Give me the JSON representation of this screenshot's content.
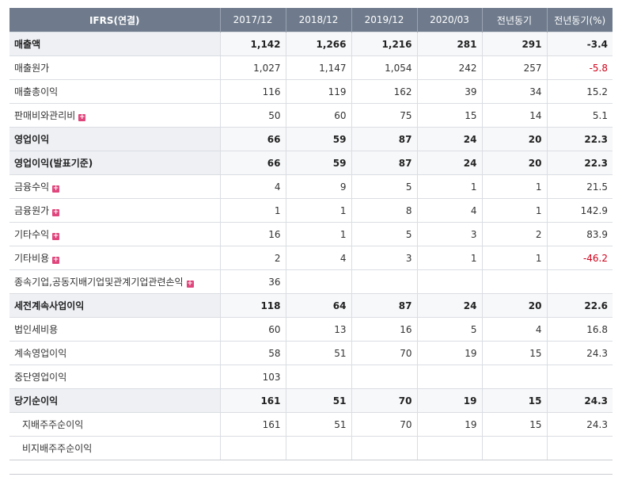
{
  "headers": [
    "IFRS(연결)",
    "2017/12",
    "2018/12",
    "2019/12",
    "2020/03",
    "전년동기",
    "전년동기(%)"
  ],
  "rows": [
    {
      "label": "매출액",
      "bold": true,
      "plus": false,
      "indent": false,
      "values": [
        "1,142",
        "1,266",
        "1,216",
        "281",
        "291",
        "-3.4"
      ],
      "neg": [
        false,
        false,
        false,
        false,
        false,
        true
      ]
    },
    {
      "label": "매출원가",
      "bold": false,
      "plus": false,
      "indent": false,
      "values": [
        "1,027",
        "1,147",
        "1,054",
        "242",
        "257",
        "-5.8"
      ],
      "neg": [
        false,
        false,
        false,
        false,
        false,
        true
      ]
    },
    {
      "label": "매출총이익",
      "bold": false,
      "plus": false,
      "indent": false,
      "values": [
        "116",
        "119",
        "162",
        "39",
        "34",
        "15.2"
      ],
      "neg": [
        false,
        false,
        false,
        false,
        false,
        false
      ]
    },
    {
      "label": "판매비와관리비",
      "bold": false,
      "plus": true,
      "indent": false,
      "values": [
        "50",
        "60",
        "75",
        "15",
        "14",
        "5.1"
      ],
      "neg": [
        false,
        false,
        false,
        false,
        false,
        false
      ]
    },
    {
      "label": "영업이익",
      "bold": true,
      "plus": false,
      "indent": false,
      "values": [
        "66",
        "59",
        "87",
        "24",
        "20",
        "22.3"
      ],
      "neg": [
        false,
        false,
        false,
        false,
        false,
        false
      ]
    },
    {
      "label": "영업이익(발표기준)",
      "bold": true,
      "plus": false,
      "indent": false,
      "values": [
        "66",
        "59",
        "87",
        "24",
        "20",
        "22.3"
      ],
      "neg": [
        false,
        false,
        false,
        false,
        false,
        false
      ]
    },
    {
      "label": "금융수익",
      "bold": false,
      "plus": true,
      "indent": false,
      "values": [
        "4",
        "9",
        "5",
        "1",
        "1",
        "21.5"
      ],
      "neg": [
        false,
        false,
        false,
        false,
        false,
        false
      ]
    },
    {
      "label": "금융원가",
      "bold": false,
      "plus": true,
      "indent": false,
      "values": [
        "1",
        "1",
        "8",
        "4",
        "1",
        "142.9"
      ],
      "neg": [
        false,
        false,
        false,
        false,
        false,
        false
      ]
    },
    {
      "label": "기타수익",
      "bold": false,
      "plus": true,
      "indent": false,
      "values": [
        "16",
        "1",
        "5",
        "3",
        "2",
        "83.9"
      ],
      "neg": [
        false,
        false,
        false,
        false,
        false,
        false
      ]
    },
    {
      "label": "기타비용",
      "bold": false,
      "plus": true,
      "indent": false,
      "values": [
        "2",
        "4",
        "3",
        "1",
        "1",
        "-46.2"
      ],
      "neg": [
        false,
        false,
        false,
        false,
        false,
        true
      ]
    },
    {
      "label": "종속기업,공동지배기업및관계기업관련손익",
      "bold": false,
      "plus": true,
      "indent": false,
      "values": [
        "36",
        "",
        "",
        "",
        "",
        ""
      ],
      "neg": [
        false,
        false,
        false,
        false,
        false,
        false
      ]
    },
    {
      "label": "세전계속사업이익",
      "bold": true,
      "plus": false,
      "indent": false,
      "values": [
        "118",
        "64",
        "87",
        "24",
        "20",
        "22.6"
      ],
      "neg": [
        false,
        false,
        false,
        false,
        false,
        false
      ]
    },
    {
      "label": "법인세비용",
      "bold": false,
      "plus": false,
      "indent": false,
      "values": [
        "60",
        "13",
        "16",
        "5",
        "4",
        "16.8"
      ],
      "neg": [
        false,
        false,
        false,
        false,
        false,
        false
      ]
    },
    {
      "label": "계속영업이익",
      "bold": false,
      "plus": false,
      "indent": false,
      "values": [
        "58",
        "51",
        "70",
        "19",
        "15",
        "24.3"
      ],
      "neg": [
        false,
        false,
        false,
        false,
        false,
        false
      ]
    },
    {
      "label": "중단영업이익",
      "bold": false,
      "plus": false,
      "indent": false,
      "values": [
        "103",
        "",
        "",
        "",
        "",
        ""
      ],
      "neg": [
        false,
        false,
        false,
        false,
        false,
        false
      ]
    },
    {
      "label": "당기순이익",
      "bold": true,
      "plus": false,
      "indent": false,
      "values": [
        "161",
        "51",
        "70",
        "19",
        "15",
        "24.3"
      ],
      "neg": [
        false,
        false,
        false,
        false,
        false,
        false
      ]
    },
    {
      "label": "지배주주순이익",
      "bold": false,
      "plus": false,
      "indent": true,
      "values": [
        "161",
        "51",
        "70",
        "19",
        "15",
        "24.3"
      ],
      "neg": [
        false,
        false,
        false,
        false,
        false,
        false
      ]
    },
    {
      "label": "비지배주주순이익",
      "bold": false,
      "plus": false,
      "indent": true,
      "values": [
        "",
        "",
        "",
        "",
        "",
        ""
      ],
      "neg": [
        false,
        false,
        false,
        false,
        false,
        false
      ]
    }
  ],
  "colors": {
    "header_bg": "#6f7b8c",
    "negative": "#d0021b",
    "plus_icon": "#e0457b"
  }
}
